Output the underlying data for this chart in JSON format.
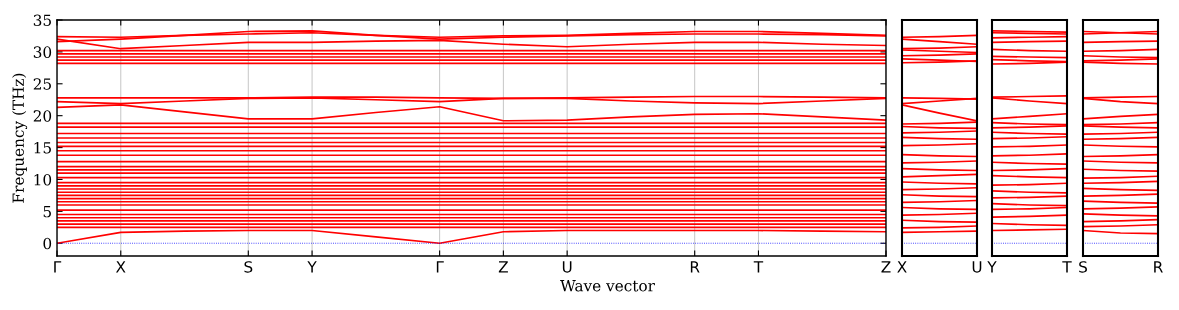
{
  "chart_data": [
    {
      "type": "line",
      "ylabel": "Frequency (THz)",
      "xlabel": "Wave vector",
      "color": "#ff0000",
      "grid": "x",
      "categories": [
        "Γ",
        "X",
        null,
        "S",
        "Y",
        null,
        "Γ",
        "Z",
        "U",
        null,
        "R",
        "T",
        null,
        "Z"
      ],
      "ylim": [
        -2,
        35
      ],
      "yticks": [
        0,
        5,
        10,
        15,
        20,
        25,
        30,
        35
      ],
      "ref_lines": [
        {
          "axis": "y",
          "value": 0,
          "color": "#0000ff",
          "line_style": "dotted"
        }
      ],
      "series": [
        {
          "values": [
            0,
            1.7,
            1.9,
            2.0,
            2.0,
            1.0,
            0,
            1.8,
            2.0,
            2.0,
            2.0,
            2.0,
            1.9,
            1.8
          ]
        },
        {
          "values": [
            2.5,
            2.5,
            2.5,
            2.5,
            2.5,
            2.5,
            2.5,
            2.5,
            2.5,
            2.5,
            2.5,
            2.5,
            2.5,
            2.5
          ]
        },
        {
          "values": [
            3,
            3,
            3,
            3,
            3,
            3,
            3,
            3,
            3,
            3,
            3,
            3,
            3,
            3
          ]
        },
        {
          "values": [
            3.5,
            3.5,
            3.5,
            3.5,
            3.5,
            3.5,
            3.5,
            3.5,
            3.5,
            3.5,
            3.5,
            3.5,
            3.5,
            3.5
          ]
        },
        {
          "values": [
            4,
            4,
            4,
            4,
            4,
            4,
            4,
            4,
            4,
            4,
            4,
            4,
            4,
            4
          ]
        },
        {
          "values": [
            4.5,
            4.5,
            4.5,
            4.5,
            4.5,
            4.5,
            4.5,
            4.5,
            4.5,
            4.5,
            4.5,
            4.5,
            4.5,
            4.5
          ]
        },
        {
          "values": [
            5.2,
            5.2,
            5.2,
            5.2,
            5.2,
            5.2,
            5.2,
            5.2,
            5.2,
            5.2,
            5.2,
            5.2,
            5.2,
            5.2
          ]
        },
        {
          "values": [
            6,
            6,
            6,
            6,
            6,
            6,
            6,
            6,
            6,
            6,
            6,
            6,
            6,
            6
          ]
        },
        {
          "values": [
            6.5,
            6.5,
            6.5,
            6.5,
            6.5,
            6.5,
            6.5,
            6.5,
            6.5,
            6.5,
            6.5,
            6.5,
            6.5,
            6.5
          ]
        },
        {
          "values": [
            7,
            7,
            7,
            7,
            7,
            7,
            7,
            7,
            7,
            7,
            7,
            7,
            7,
            7
          ]
        },
        {
          "values": [
            7.5,
            7.5,
            7.5,
            7.5,
            7.5,
            7.5,
            7.5,
            7.5,
            7.5,
            7.5,
            7.5,
            7.5,
            7.5,
            7.5
          ]
        },
        {
          "values": [
            8,
            8,
            8,
            8,
            8,
            8,
            8,
            8,
            8,
            8,
            8,
            8,
            8,
            8
          ]
        },
        {
          "values": [
            8.5,
            8.5,
            8.5,
            8.5,
            8.5,
            8.5,
            8.5,
            8.5,
            8.5,
            8.5,
            8.5,
            8.5,
            8.5,
            8.5
          ]
        },
        {
          "values": [
            9,
            9,
            9,
            9,
            9,
            9,
            9,
            9,
            9,
            9,
            9,
            9,
            9,
            9
          ]
        },
        {
          "values": [
            9.5,
            9.5,
            9.5,
            9.5,
            9.5,
            9.5,
            9.5,
            9.5,
            9.5,
            9.5,
            9.5,
            9.5,
            9.5,
            9.5
          ]
        },
        {
          "values": [
            10.3,
            10.3,
            10.3,
            10.3,
            10.3,
            10.3,
            10.3,
            10.3,
            10.3,
            10.3,
            10.3,
            10.3,
            10.3,
            10.3
          ]
        },
        {
          "values": [
            11,
            11,
            11,
            11,
            11,
            11,
            11,
            11,
            11,
            11,
            11,
            11,
            11,
            11
          ]
        },
        {
          "values": [
            11.5,
            11.5,
            11.5,
            11.5,
            11.5,
            11.5,
            11.5,
            11.5,
            11.5,
            11.5,
            11.5,
            11.5,
            11.5,
            11.5
          ]
        },
        {
          "values": [
            12,
            12,
            12,
            12,
            12,
            12,
            12,
            12,
            12,
            12,
            12,
            12,
            12,
            12
          ]
        },
        {
          "values": [
            12.8,
            12.8,
            12.8,
            12.8,
            12.8,
            12.8,
            12.8,
            12.8,
            12.8,
            12.8,
            12.8,
            12.8,
            12.8,
            12.8
          ]
        },
        {
          "values": [
            13.8,
            13.8,
            13.8,
            13.8,
            13.8,
            13.8,
            13.8,
            13.8,
            13.8,
            13.8,
            13.8,
            13.8,
            13.8,
            13.8
          ]
        },
        {
          "values": [
            14.5,
            14.5,
            14.5,
            14.5,
            14.5,
            14.5,
            14.5,
            14.5,
            14.5,
            14.5,
            14.5,
            14.5,
            14.5,
            14.5
          ]
        },
        {
          "values": [
            15.2,
            15.2,
            15.2,
            15.2,
            15.2,
            15.2,
            15.2,
            15.2,
            15.2,
            15.2,
            15.2,
            15.2,
            15.2,
            15.2
          ]
        },
        {
          "values": [
            15.8,
            15.8,
            15.8,
            15.8,
            15.8,
            15.8,
            15.8,
            15.8,
            15.8,
            15.8,
            15.8,
            15.8,
            15.8,
            15.8
          ]
        },
        {
          "values": [
            16.5,
            16.5,
            16.5,
            16.5,
            16.5,
            16.5,
            16.5,
            16.5,
            16.5,
            16.5,
            16.5,
            16.5,
            16.5,
            16.5
          ]
        },
        {
          "values": [
            17.2,
            17.2,
            17.2,
            17.2,
            17.2,
            17.2,
            17.2,
            17.2,
            17.2,
            17.2,
            17.2,
            17.2,
            17.2,
            17.2
          ]
        },
        {
          "values": [
            18.2,
            18.2,
            18.2,
            18.2,
            18.2,
            18.2,
            18.2,
            18.2,
            18.2,
            18.2,
            18.2,
            18.2,
            18.2,
            18.2
          ]
        },
        {
          "values": [
            18.8,
            18.8,
            18.8,
            18.8,
            18.8,
            18.8,
            18.8,
            18.8,
            18.8,
            18.8,
            18.8,
            18.8,
            18.8,
            18.8
          ]
        },
        {
          "values": [
            21.3,
            21.7,
            20.6,
            19.5,
            19.5,
            20.5,
            21.4,
            19.2,
            19.3,
            19.8,
            20.2,
            20.3,
            19.8,
            19.3
          ]
        },
        {
          "values": [
            22.2,
            21.9,
            22.3,
            22.7,
            22.8,
            22.5,
            22.2,
            22.7,
            22.7,
            22.3,
            22.0,
            21.9,
            22.3,
            22.7
          ]
        },
        {
          "values": [
            22.8,
            22.8,
            22.8,
            22.8,
            22.9,
            22.9,
            22.8,
            22.7,
            22.8,
            22.9,
            23.0,
            23.0,
            22.9,
            22.8
          ]
        },
        {
          "values": [
            28.2,
            28.2,
            28.2,
            28.2,
            28.2,
            28.2,
            28.2,
            28.2,
            28.2,
            28.2,
            28.2,
            28.2,
            28.2,
            28.2
          ]
        },
        {
          "values": [
            28.7,
            28.7,
            28.7,
            28.7,
            28.7,
            28.7,
            28.7,
            28.7,
            28.7,
            28.7,
            28.7,
            28.7,
            28.7,
            28.7
          ]
        },
        {
          "values": [
            29.2,
            29.2,
            29.2,
            29.2,
            29.2,
            29.2,
            29.2,
            29.2,
            29.2,
            29.2,
            29.2,
            29.2,
            29.2,
            29.2
          ]
        },
        {
          "values": [
            29.7,
            29.7,
            29.7,
            29.7,
            29.7,
            29.7,
            29.7,
            29.7,
            29.7,
            29.7,
            29.7,
            29.7,
            29.7,
            29.7
          ]
        },
        {
          "values": [
            30.2,
            30.2,
            30.2,
            30.2,
            30.2,
            30.2,
            30.2,
            30.2,
            30.2,
            30.2,
            30.2,
            30.2,
            30.2,
            30.2
          ]
        },
        {
          "values": [
            32.0,
            30.5,
            31.0,
            31.5,
            31.5,
            31.7,
            31.8,
            31.2,
            30.8,
            31.2,
            31.5,
            31.5,
            31.2,
            31.0
          ]
        },
        {
          "values": [
            32.4,
            32.3,
            32.6,
            32.8,
            33.0,
            32.6,
            32.3,
            32.5,
            32.6,
            32.9,
            33.2,
            33.2,
            32.9,
            32.6
          ]
        },
        {
          "values": [
            31.6,
            32.0,
            32.6,
            33.2,
            33.3,
            32.6,
            32.0,
            32.3,
            32.5,
            32.7,
            32.8,
            32.8,
            32.7,
            32.5
          ]
        }
      ]
    },
    {
      "type": "line",
      "color": "#ff0000",
      "tick_labels": "x",
      "categories": [
        "X",
        null,
        "U"
      ],
      "ylim": [
        -2,
        35
      ],
      "yticks": [
        0,
        5,
        10,
        15,
        20,
        25,
        30,
        35
      ],
      "ref_lines": [
        {
          "axis": "y",
          "value": 0,
          "color": "#0000ff",
          "line_style": "dotted"
        }
      ],
      "series": [
        {
          "values": [
            1.7,
            1.8,
            1.9
          ]
        },
        {
          "values": [
            2.4,
            2.5,
            2.7
          ]
        },
        {
          "values": [
            3.6,
            3.4,
            3.3
          ]
        },
        {
          "values": [
            4.4,
            4.5,
            4.7
          ]
        },
        {
          "values": [
            5.6,
            5.4,
            5.3
          ]
        },
        {
          "values": [
            6.4,
            6.5,
            6.7
          ]
        },
        {
          "values": [
            7.6,
            7.4,
            7.3
          ]
        },
        {
          "values": [
            8.4,
            8.5,
            8.7
          ]
        },
        {
          "values": [
            9.6,
            9.4,
            9.3
          ]
        },
        {
          "values": [
            10.4,
            10.6,
            10.8
          ]
        },
        {
          "values": [
            11.7,
            11.5,
            11.4
          ]
        },
        {
          "values": [
            12.6,
            12.7,
            12.9
          ]
        },
        {
          "values": [
            13.9,
            13.7,
            13.6
          ]
        },
        {
          "values": [
            15.3,
            15.4,
            15.6
          ]
        },
        {
          "values": [
            16.6,
            16.4,
            16.3
          ]
        },
        {
          "values": [
            17.3,
            17.4,
            17.6
          ]
        },
        {
          "values": [
            18.3,
            18.1,
            18.0
          ]
        },
        {
          "values": [
            18.7,
            18.8,
            19.0
          ]
        },
        {
          "values": [
            21.7,
            20.4,
            19.2
          ]
        },
        {
          "values": [
            21.9,
            22.3,
            22.7
          ]
        },
        {
          "values": [
            22.8,
            22.7,
            22.6
          ]
        },
        {
          "values": [
            28.3,
            28.4,
            28.6
          ]
        },
        {
          "values": [
            28.9,
            28.7,
            28.5
          ]
        },
        {
          "values": [
            29.4,
            29.5,
            29.7
          ]
        },
        {
          "values": [
            30.3,
            30.1,
            29.9
          ]
        },
        {
          "values": [
            30.5,
            30.6,
            30.8
          ]
        },
        {
          "values": [
            32.3,
            32.4,
            32.6
          ]
        },
        {
          "values": [
            32.0,
            31.6,
            31.2
          ]
        }
      ]
    },
    {
      "type": "line",
      "color": "#ff0000",
      "tick_labels": "x",
      "categories": [
        "Y",
        null,
        "T"
      ],
      "ylim": [
        -2,
        35
      ],
      "yticks": [
        0,
        5,
        10,
        15,
        20,
        25,
        30,
        35
      ],
      "ref_lines": [
        {
          "axis": "y",
          "value": 0,
          "color": "#0000ff",
          "line_style": "dotted"
        }
      ],
      "series": [
        {
          "values": [
            2.0,
            2.1,
            2.2
          ]
        },
        {
          "values": [
            3.1,
            2.9,
            2.8
          ]
        },
        {
          "values": [
            4.1,
            4.2,
            4.4
          ]
        },
        {
          "values": [
            5.3,
            5.4,
            5.6
          ]
        },
        {
          "values": [
            6.2,
            6.0,
            5.9
          ]
        },
        {
          "values": [
            7.1,
            7.2,
            7.4
          ]
        },
        {
          "values": [
            8.2,
            8.0,
            7.9
          ]
        },
        {
          "values": [
            9.1,
            9.2,
            9.4
          ]
        },
        {
          "values": [
            10.6,
            10.4,
            10.3
          ]
        },
        {
          "values": [
            11.4,
            11.5,
            11.7
          ]
        },
        {
          "values": [
            12.7,
            12.5,
            12.4
          ]
        },
        {
          "values": [
            13.7,
            13.8,
            14.0
          ]
        },
        {
          "values": [
            15.1,
            15.2,
            15.4
          ]
        },
        {
          "values": [
            16.4,
            16.5,
            16.7
          ]
        },
        {
          "values": [
            17.4,
            17.2,
            17.1
          ]
        },
        {
          "values": [
            18.1,
            18.2,
            18.4
          ]
        },
        {
          "values": [
            18.9,
            18.7,
            18.6
          ]
        },
        {
          "values": [
            19.5,
            19.9,
            20.3
          ]
        },
        {
          "values": [
            22.8,
            22.3,
            21.9
          ]
        },
        {
          "values": [
            22.9,
            23.0,
            23.1
          ]
        },
        {
          "values": [
            28.1,
            28.2,
            28.4
          ]
        },
        {
          "values": [
            28.8,
            28.6,
            28.5
          ]
        },
        {
          "values": [
            29.3,
            29.2,
            29.1
          ]
        },
        {
          "values": [
            30.4,
            30.2,
            30.1
          ]
        },
        {
          "values": [
            31.5,
            31.6,
            31.7
          ]
        },
        {
          "values": [
            32.2,
            32.3,
            32.4
          ]
        },
        {
          "values": [
            33.0,
            32.9,
            32.8
          ]
        },
        {
          "values": [
            33.3,
            33.2,
            33.1
          ]
        }
      ]
    },
    {
      "type": "line",
      "color": "#ff0000",
      "tick_labels": "x",
      "categories": [
        "S",
        null,
        "R"
      ],
      "ylim": [
        -2,
        35
      ],
      "yticks": [
        0,
        5,
        10,
        15,
        20,
        25,
        30,
        35
      ],
      "ref_lines": [
        {
          "axis": "y",
          "value": 0,
          "color": "#0000ff",
          "line_style": "dotted"
        }
      ],
      "series": [
        {
          "values": [
            2.0,
            1.6,
            1.5
          ]
        },
        {
          "values": [
            2.6,
            2.7,
            2.9
          ]
        },
        {
          "values": [
            3.4,
            3.5,
            3.7
          ]
        },
        {
          "values": [
            4.6,
            4.4,
            4.3
          ]
        },
        {
          "values": [
            5.4,
            5.5,
            5.7
          ]
        },
        {
          "values": [
            6.6,
            6.4,
            6.3
          ]
        },
        {
          "values": [
            7.4,
            7.5,
            7.7
          ]
        },
        {
          "values": [
            8.6,
            8.4,
            8.3
          ]
        },
        {
          "values": [
            9.4,
            9.5,
            9.7
          ]
        },
        {
          "values": [
            10.2,
            10.3,
            10.5
          ]
        },
        {
          "values": [
            11.6,
            11.4,
            11.3
          ]
        },
        {
          "values": [
            12.9,
            12.7,
            12.6
          ]
        },
        {
          "values": [
            13.6,
            13.7,
            13.9
          ]
        },
        {
          "values": [
            15.4,
            15.2,
            15.1
          ]
        },
        {
          "values": [
            16.3,
            16.4,
            16.6
          ]
        },
        {
          "values": [
            17.1,
            17.2,
            17.4
          ]
        },
        {
          "values": [
            18.4,
            18.2,
            18.1
          ]
        },
        {
          "values": [
            18.6,
            18.7,
            18.9
          ]
        },
        {
          "values": [
            19.5,
            19.9,
            20.2
          ]
        },
        {
          "values": [
            22.7,
            22.2,
            21.9
          ]
        },
        {
          "values": [
            22.8,
            22.9,
            23.0
          ]
        },
        {
          "values": [
            28.4,
            28.2,
            28.1
          ]
        },
        {
          "values": [
            28.6,
            28.7,
            28.9
          ]
        },
        {
          "values": [
            29.4,
            29.2,
            29.1
          ]
        },
        {
          "values": [
            30.1,
            30.2,
            30.4
          ]
        },
        {
          "values": [
            31.5,
            31.6,
            31.7
          ]
        },
        {
          "values": [
            32.8,
            33.0,
            33.2
          ]
        },
        {
          "values": [
            33.2,
            33.0,
            32.8
          ]
        }
      ]
    }
  ]
}
